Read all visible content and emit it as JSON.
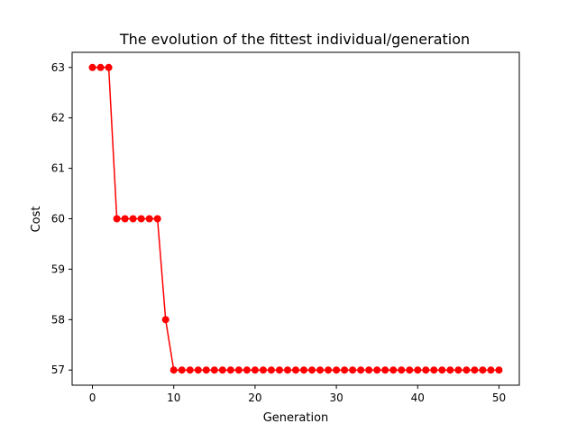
{
  "chart_data": {
    "type": "line",
    "title": "The evolution of the fittest individual/generation",
    "xlabel": "Generation",
    "ylabel": "Cost",
    "xlim": [
      -2.5,
      52.5
    ],
    "ylim": [
      56.7,
      63.3
    ],
    "xticks": [
      0,
      10,
      20,
      30,
      40,
      50
    ],
    "yticks": [
      57,
      58,
      59,
      60,
      61,
      62,
      63
    ],
    "grid": false,
    "series": [
      {
        "color": "#ff0000",
        "marker": "circle",
        "x": [
          0,
          1,
          2,
          3,
          4,
          5,
          6,
          7,
          8,
          9,
          10,
          11,
          12,
          13,
          14,
          15,
          16,
          17,
          18,
          19,
          20,
          21,
          22,
          23,
          24,
          25,
          26,
          27,
          28,
          29,
          30,
          31,
          32,
          33,
          34,
          35,
          36,
          37,
          38,
          39,
          40,
          41,
          42,
          43,
          44,
          45,
          46,
          47,
          48,
          49,
          50
        ],
        "y": [
          63,
          63,
          63,
          60,
          60,
          60,
          60,
          60,
          60,
          58,
          57,
          57,
          57,
          57,
          57,
          57,
          57,
          57,
          57,
          57,
          57,
          57,
          57,
          57,
          57,
          57,
          57,
          57,
          57,
          57,
          57,
          57,
          57,
          57,
          57,
          57,
          57,
          57,
          57,
          57,
          57,
          57,
          57,
          57,
          57,
          57,
          57,
          57,
          57,
          57,
          57
        ]
      }
    ]
  }
}
